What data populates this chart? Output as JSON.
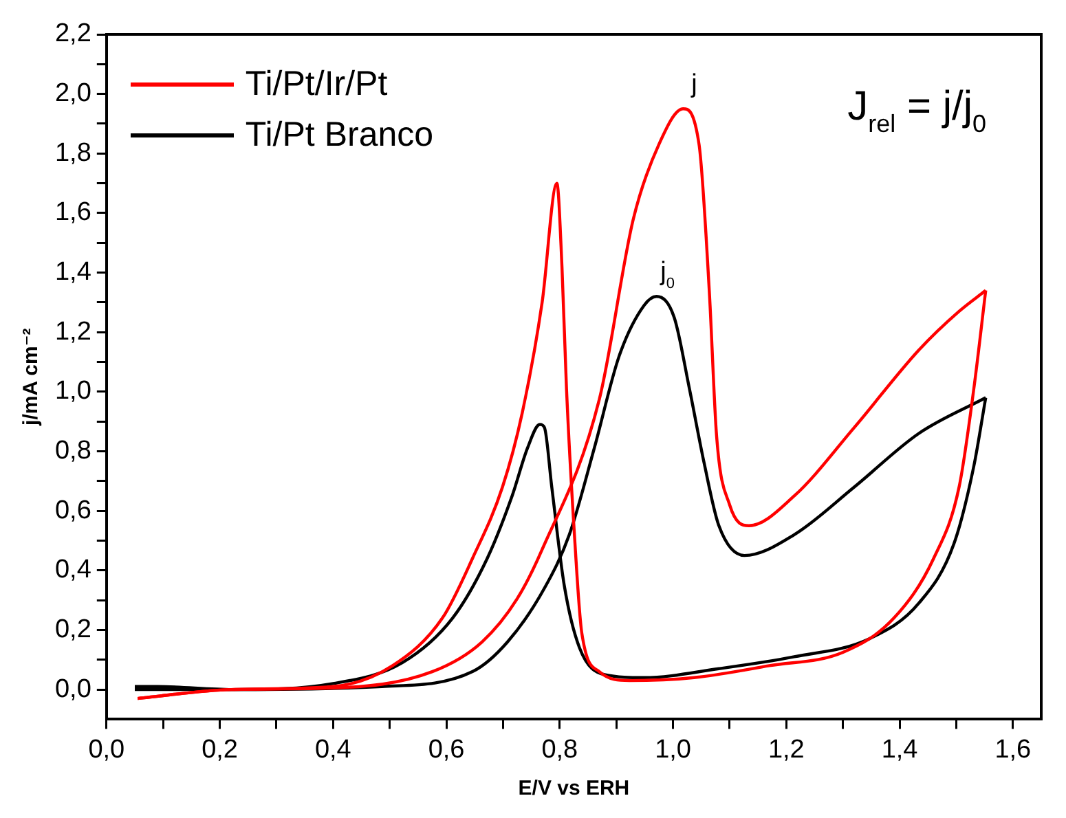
{
  "chart_data": {
    "type": "line",
    "xlabel": "E/V vs ERH",
    "ylabel": "j/mA cm⁻²",
    "xlim": [
      0,
      1.65
    ],
    "ylim": [
      -0.1,
      2.2
    ],
    "xticks": [
      {
        "value": 0,
        "label": "0,0"
      },
      {
        "value": 0.1,
        "label": null
      },
      {
        "value": 0.2,
        "label": "0,2"
      },
      {
        "value": 0.3,
        "label": null
      },
      {
        "value": 0.4,
        "label": "0,4"
      },
      {
        "value": 0.5,
        "label": null
      },
      {
        "value": 0.6,
        "label": "0,6"
      },
      {
        "value": 0.7,
        "label": null
      },
      {
        "value": 0.8,
        "label": "0,8"
      },
      {
        "value": 0.9,
        "label": null
      },
      {
        "value": 1.0,
        "label": "1,0"
      },
      {
        "value": 1.1,
        "label": null
      },
      {
        "value": 1.2,
        "label": "1,2"
      },
      {
        "value": 1.3,
        "label": null
      },
      {
        "value": 1.4,
        "label": "1,4"
      },
      {
        "value": 1.5,
        "label": null
      },
      {
        "value": 1.6,
        "label": "1,6"
      }
    ],
    "yticks": [
      {
        "value": 0,
        "label": "0,0"
      },
      {
        "value": 0.1,
        "label": null
      },
      {
        "value": 0.2,
        "label": "0,2"
      },
      {
        "value": 0.3,
        "label": null
      },
      {
        "value": 0.4,
        "label": "0,4"
      },
      {
        "value": 0.5,
        "label": null
      },
      {
        "value": 0.6,
        "label": "0,6"
      },
      {
        "value": 0.7,
        "label": null
      },
      {
        "value": 0.8,
        "label": "0,8"
      },
      {
        "value": 0.9,
        "label": null
      },
      {
        "value": 1.0,
        "label": "1,0"
      },
      {
        "value": 1.1,
        "label": null
      },
      {
        "value": 1.2,
        "label": "1,2"
      },
      {
        "value": 1.3,
        "label": null
      },
      {
        "value": 1.4,
        "label": "1,4"
      },
      {
        "value": 1.5,
        "label": null
      },
      {
        "value": 1.6,
        "label": "1,6"
      },
      {
        "value": 1.7,
        "label": null
      },
      {
        "value": 1.8,
        "label": "1,8"
      },
      {
        "value": 1.9,
        "label": null
      },
      {
        "value": 2.0,
        "label": "2,0"
      },
      {
        "value": 2.1,
        "label": null
      },
      {
        "value": 2.2,
        "label": "2,2"
      }
    ],
    "legend": "top left",
    "marker": "none",
    "line_style": "solid",
    "series": [
      {
        "name": "Ti/Pt/Ir/Pt",
        "color": "#ff0000",
        "x": [
          0.055,
          0.22,
          0.4,
          0.575,
          0.663,
          0.725,
          0.769,
          0.87,
          0.93,
          0.975,
          1.018,
          1.046,
          1.064,
          1.077,
          1.1,
          1.134,
          1.214,
          1.32,
          1.434,
          1.505,
          1.552
        ],
        "values": [
          -0.03,
          0,
          0.005,
          0.06,
          0.16,
          0.305,
          0.47,
          0.975,
          1.58,
          1.83,
          1.95,
          1.83,
          1.34,
          0.85,
          0.62,
          0.55,
          0.65,
          0.88,
          1.14,
          1.27,
          1.34
        ]
      },
      {
        "color": "#ff0000",
        "x": [
          0.055,
          0.22,
          0.4,
          0.505,
          0.593,
          0.646,
          0.699,
          0.734,
          0.769,
          0.795,
          0.804,
          0.812,
          0.826,
          0.839,
          0.87,
          0.923,
          1.037,
          1.17,
          1.3,
          1.39,
          1.46,
          1.505,
          1.531,
          1.552
        ],
        "values": [
          -0.03,
          0.0,
          0.01,
          0.08,
          0.24,
          0.44,
          0.68,
          0.93,
          1.3,
          1.7,
          1.42,
          1.01,
          0.52,
          0.19,
          0.06,
          0.03,
          0.04,
          0.08,
          0.125,
          0.24,
          0.44,
          0.68,
          1.01,
          1.34
        ]
      },
      {
        "name": "Ti/Pt Branco",
        "color": "#000000",
        "x": [
          0.05,
          0.22,
          0.486,
          0.646,
          0.708,
          0.773,
          0.817,
          0.861,
          0.905,
          0.949,
          0.971,
          1.002,
          1.029,
          1.055,
          1.081,
          1.126,
          1.214,
          1.32,
          1.434,
          1.552
        ],
        "values": [
          0,
          0,
          0.01,
          0.06,
          0.16,
          0.34,
          0.52,
          0.81,
          1.12,
          1.29,
          1.32,
          1.25,
          1.01,
          0.76,
          0.55,
          0.45,
          0.52,
          0.68,
          0.86,
          0.98
        ]
      },
      {
        "color": "#000000",
        "x": [
          0.05,
          0.09,
          0.222,
          0.4,
          0.522,
          0.611,
          0.672,
          0.716,
          0.743,
          0.765,
          0.773,
          0.786,
          0.808,
          0.835,
          0.879,
          0.949,
          1.081,
          1.214,
          1.346,
          1.434,
          1.496,
          1.531,
          1.552
        ],
        "values": [
          0.01,
          0.01,
          0.0,
          0.02,
          0.09,
          0.24,
          0.44,
          0.65,
          0.81,
          0.89,
          0.88,
          0.68,
          0.35,
          0.14,
          0.05,
          0.04,
          0.07,
          0.11,
          0.17,
          0.29,
          0.49,
          0.75,
          0.98
        ]
      }
    ],
    "annotations": [
      {
        "text": "j",
        "x": 1.018,
        "y": 1.95
      },
      {
        "text": "j$_{0}$",
        "x": 0.971,
        "y": 1.32
      },
      "J$_{rel}$ = j/j$_{0}$"
    ]
  }
}
